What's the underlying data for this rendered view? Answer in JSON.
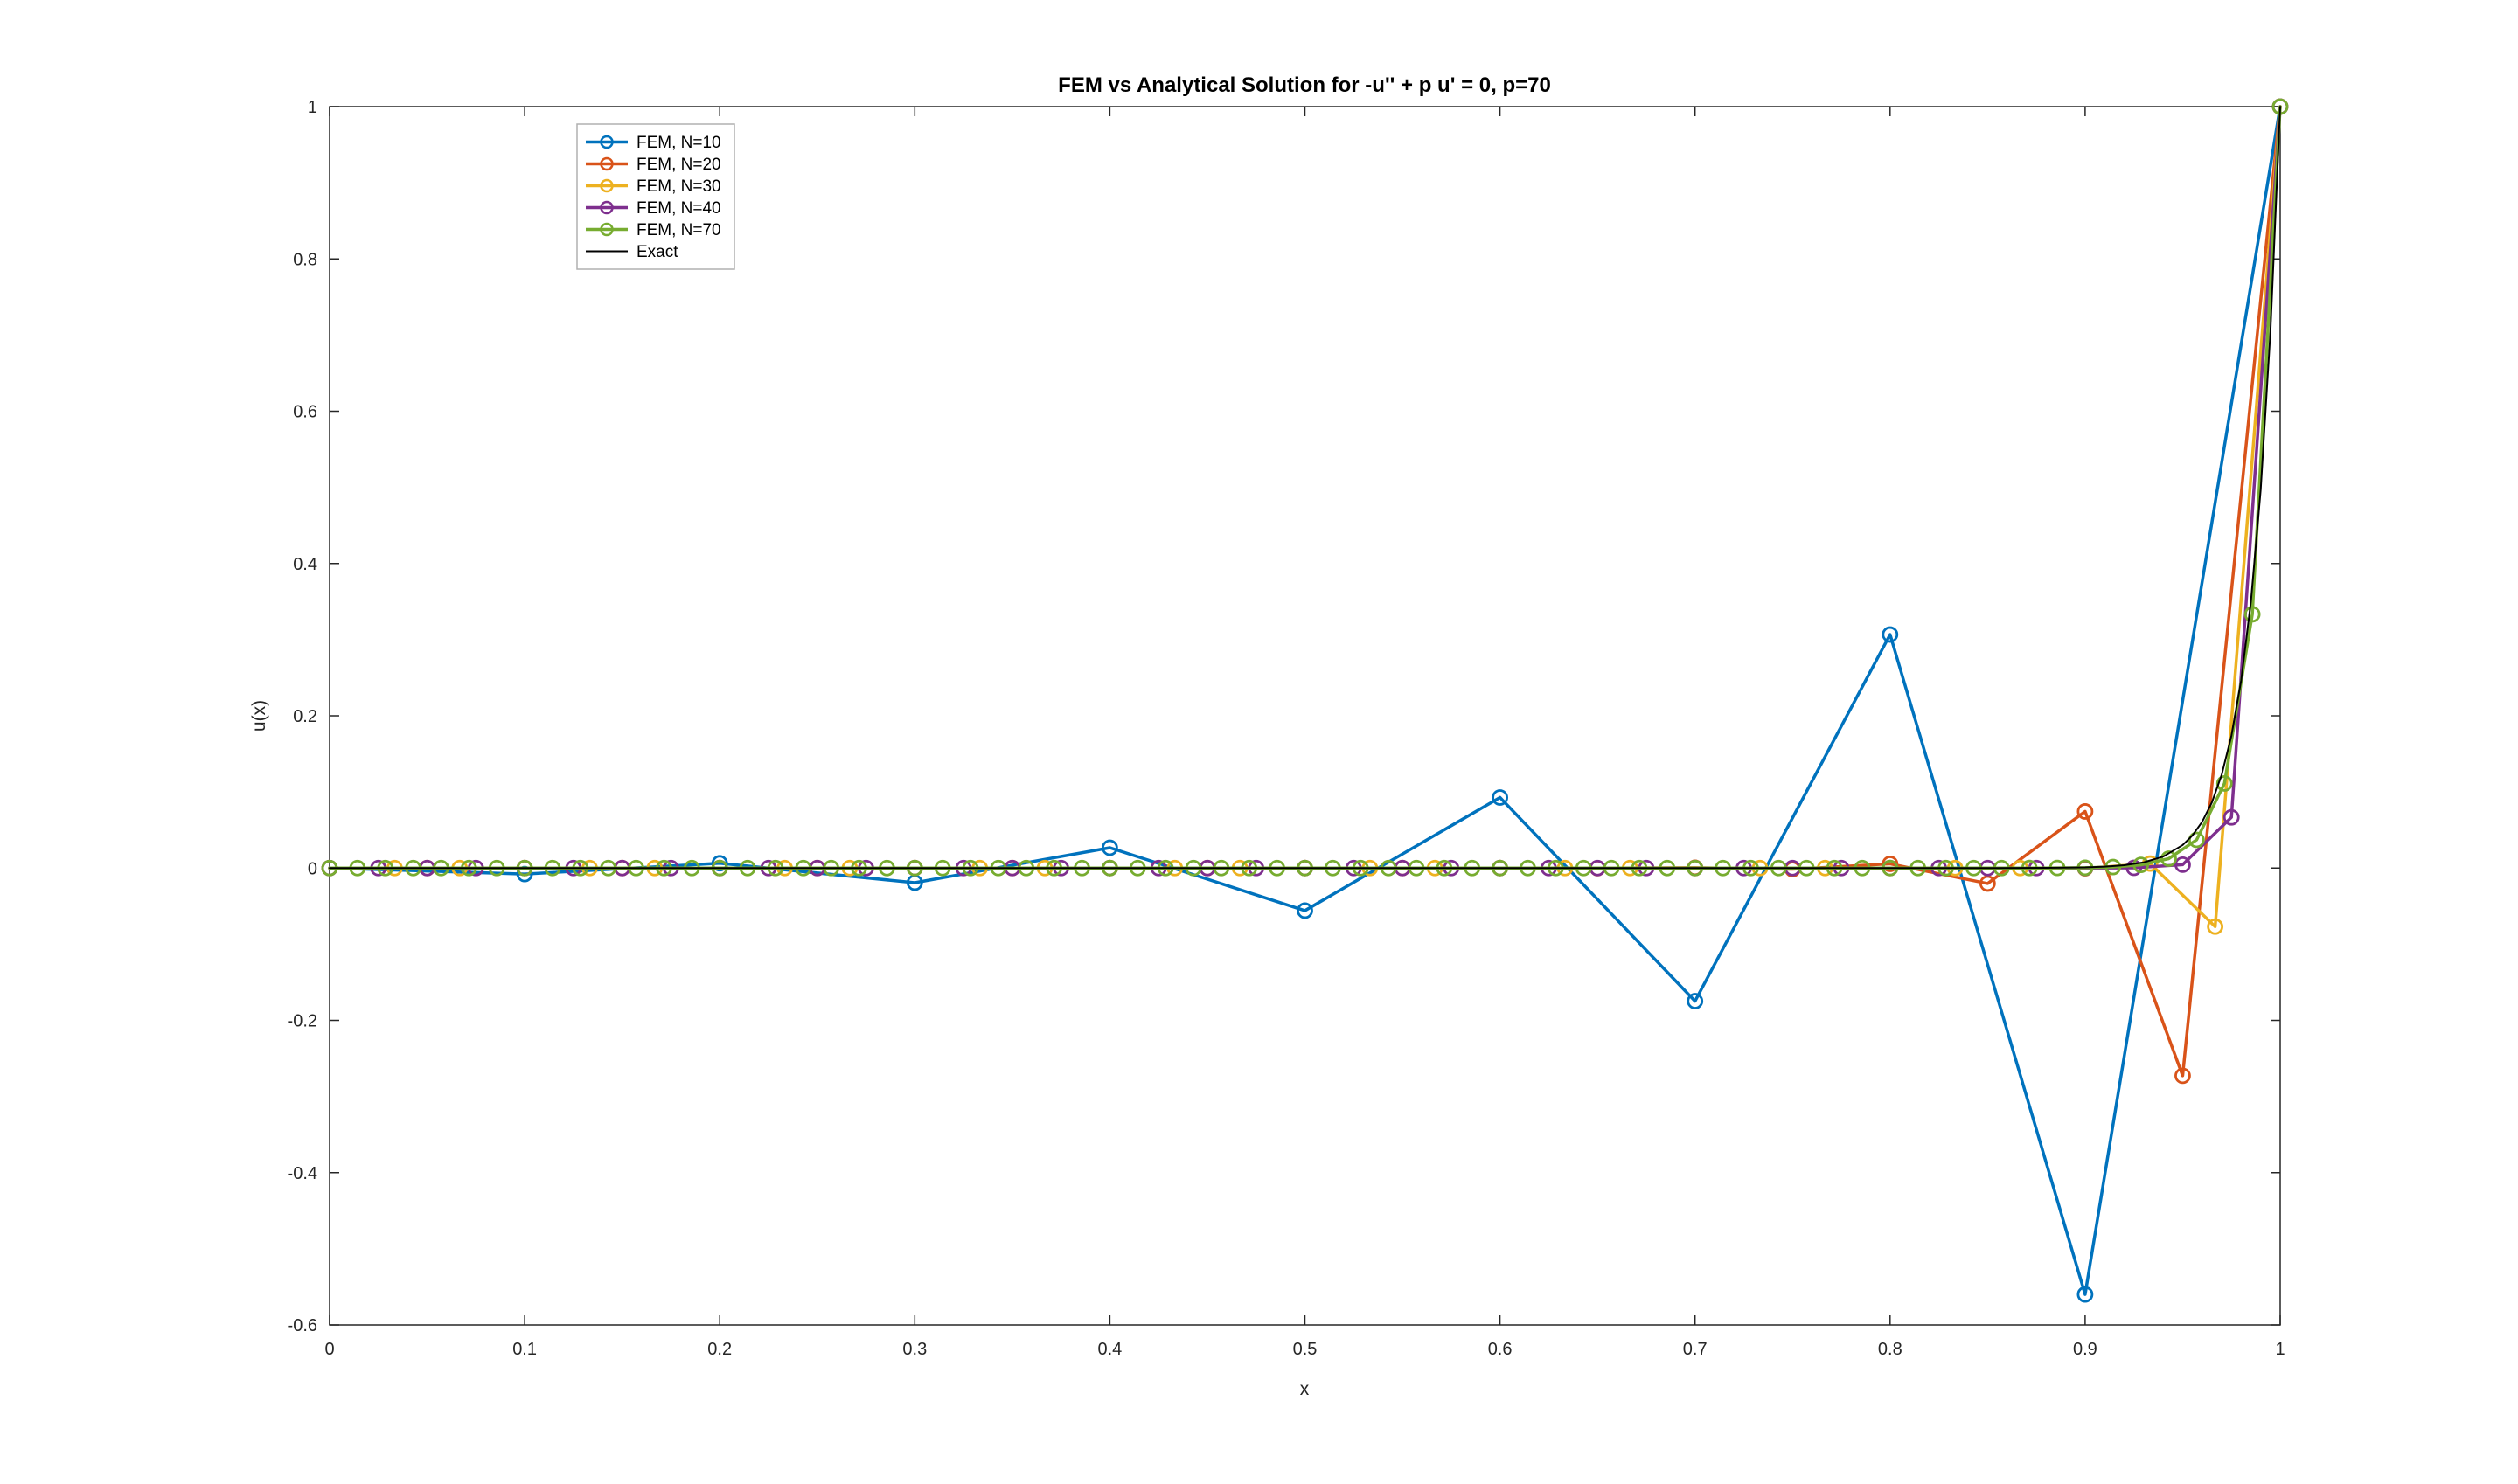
{
  "figure": {
    "background_color": "#ffffff",
    "axes_color": "#262626"
  },
  "chart_data": {
    "type": "line",
    "title": "FEM vs Analytical Solution for -u'' + p u' = 0,  p=70",
    "xlabel": "x",
    "ylabel": "u(x)",
    "xlim": [
      0,
      1
    ],
    "ylim": [
      -0.6,
      1
    ],
    "grid": false,
    "legend": {
      "location": "northwest-inside",
      "border_color": "#b0b0b0",
      "background": "#ffffff"
    },
    "xticks": [
      {
        "value": 0,
        "label": "0"
      },
      {
        "value": 0.1,
        "label": "0.1"
      },
      {
        "value": 0.2,
        "label": "0.2"
      },
      {
        "value": 0.3,
        "label": "0.3"
      },
      {
        "value": 0.4,
        "label": "0.4"
      },
      {
        "value": 0.5,
        "label": "0.5"
      },
      {
        "value": 0.6,
        "label": "0.6"
      },
      {
        "value": 0.7,
        "label": "0.7"
      },
      {
        "value": 0.8,
        "label": "0.8"
      },
      {
        "value": 0.9,
        "label": "0.9"
      },
      {
        "value": 1,
        "label": "1"
      }
    ],
    "yticks": [
      {
        "value": -0.6,
        "label": "-0.6"
      },
      {
        "value": -0.4,
        "label": "-0.4"
      },
      {
        "value": -0.2,
        "label": "-0.2"
      },
      {
        "value": 0,
        "label": "0"
      },
      {
        "value": 0.2,
        "label": "0.2"
      },
      {
        "value": 0.4,
        "label": "0.4"
      },
      {
        "value": 0.6,
        "label": "0.6"
      },
      {
        "value": 0.8,
        "label": "0.8"
      },
      {
        "value": 1,
        "label": "1"
      }
    ],
    "series": [
      {
        "id": "fem-n10",
        "name": "FEM, N=10",
        "color": "#0072BD",
        "marker": "circle",
        "line_width": 3.5,
        "x": [
          0,
          0.1,
          0.2,
          0.3,
          0.4,
          0.5,
          0.6,
          0.7,
          0.8,
          0.9,
          1
        ],
        "y": [
          0,
          -0.007864,
          0.006291,
          -0.019188,
          0.026675,
          -0.05588,
          0.092719,
          -0.174758,
          0.3067,
          -0.559924,
          1
        ]
      },
      {
        "id": "fem-n20",
        "name": "FEM, N=20",
        "color": "#D95319",
        "marker": "circle",
        "line_width": 3.5,
        "x": [
          0,
          0.05,
          0.1,
          0.15,
          0.2,
          0.25,
          0.3,
          0.35,
          0.4,
          0.45,
          0.5,
          0.55,
          0.6,
          0.65,
          0.7,
          0.75,
          0.8,
          0.85,
          0.9,
          0.95,
          1
        ],
        "y": [
          0,
          0,
          0,
          0,
          0,
          0,
          0,
          0,
          0,
          0,
          2e-06,
          -8e-06,
          3.1e-05,
          -0.000112,
          0.000412,
          -0.001509,
          0.005532,
          -0.020286,
          0.07438,
          -0.272727,
          1
        ]
      },
      {
        "id": "fem-n30",
        "name": "FEM, N=30",
        "color": "#EDB120",
        "marker": "circle",
        "line_width": 3.5,
        "x": [
          0,
          0.033333,
          0.066667,
          0.1,
          0.133333,
          0.166667,
          0.2,
          0.233333,
          0.266667,
          0.3,
          0.333333,
          0.366667,
          0.4,
          0.433333,
          0.466667,
          0.5,
          0.533333,
          0.566667,
          0.6,
          0.633333,
          0.666667,
          0.7,
          0.733333,
          0.766667,
          0.8,
          0.833333,
          0.866667,
          0.9,
          0.933333,
          0.966667,
          1
        ],
        "y": [
          0,
          0,
          0,
          0,
          0,
          0,
          0,
          0,
          0,
          0,
          0,
          0,
          0,
          0,
          0,
          0,
          0,
          0,
          0,
          0,
          0,
          0,
          0,
          0,
          0,
          -3e-06,
          3.5e-05,
          -0.000455,
          0.005917,
          -0.076923,
          1
        ]
      },
      {
        "id": "fem-n40",
        "name": "FEM, N=40",
        "color": "#7E2F8E",
        "marker": "circle",
        "line_width": 3.5,
        "x": [
          0,
          0.025,
          0.05,
          0.075,
          0.1,
          0.125,
          0.15,
          0.175,
          0.2,
          0.225,
          0.25,
          0.275,
          0.3,
          0.325,
          0.35,
          0.375,
          0.4,
          0.425,
          0.45,
          0.475,
          0.5,
          0.525,
          0.55,
          0.575,
          0.6,
          0.625,
          0.65,
          0.675,
          0.7,
          0.725,
          0.75,
          0.775,
          0.8,
          0.825,
          0.85,
          0.875,
          0.9,
          0.925,
          0.95,
          0.975,
          1
        ],
        "y": [
          0,
          0,
          0,
          0,
          0,
          0,
          0,
          0,
          0,
          0,
          0,
          0,
          0,
          0,
          0,
          0,
          0,
          0,
          0,
          0,
          0,
          0,
          0,
          0,
          0,
          0,
          0,
          0,
          0,
          0,
          0,
          0,
          0,
          0,
          0,
          1e-06,
          2e-05,
          0.000296,
          0.004444,
          0.066667,
          1
        ]
      },
      {
        "id": "fem-n70",
        "name": "FEM, N=70",
        "color": "#77AC30",
        "marker": "circle",
        "line_width": 3.5,
        "x": [
          0,
          0.014286,
          0.028571,
          0.042857,
          0.057143,
          0.071429,
          0.085714,
          0.1,
          0.114286,
          0.128571,
          0.142857,
          0.157143,
          0.171429,
          0.185714,
          0.2,
          0.214286,
          0.228571,
          0.242857,
          0.257143,
          0.271429,
          0.285714,
          0.3,
          0.314286,
          0.328571,
          0.342857,
          0.357143,
          0.371429,
          0.385714,
          0.4,
          0.414286,
          0.428571,
          0.442857,
          0.457143,
          0.471429,
          0.485714,
          0.5,
          0.514286,
          0.528571,
          0.542857,
          0.557143,
          0.571429,
          0.585714,
          0.6,
          0.614286,
          0.628571,
          0.642857,
          0.657143,
          0.671429,
          0.685714,
          0.7,
          0.714286,
          0.728571,
          0.742857,
          0.757143,
          0.771429,
          0.785714,
          0.8,
          0.814286,
          0.828571,
          0.842857,
          0.857143,
          0.871429,
          0.885714,
          0.9,
          0.914286,
          0.928571,
          0.942857,
          0.957143,
          0.971429,
          0.985714,
          1
        ],
        "y": [
          0,
          0,
          0,
          0,
          0,
          0,
          0,
          0,
          0,
          0,
          0,
          0,
          0,
          0,
          0,
          0,
          0,
          0,
          0,
          0,
          0,
          0,
          0,
          0,
          0,
          0,
          0,
          0,
          0,
          0,
          0,
          0,
          0,
          0,
          0,
          0,
          0,
          0,
          0,
          0,
          0,
          0,
          0,
          0,
          0,
          0,
          0,
          0,
          0,
          0,
          0,
          0,
          0,
          0,
          0,
          0,
          0,
          0,
          2e-06,
          6e-06,
          1.7e-05,
          5.1e-05,
          0.000152,
          0.000457,
          0.001372,
          0.004115,
          0.012346,
          0.037037,
          0.111111,
          0.333333,
          1
        ]
      },
      {
        "id": "exact",
        "name": "Exact",
        "color": "#000000",
        "marker": "none",
        "line_width": 2,
        "x": [
          0,
          0.1,
          0.2,
          0.3,
          0.4,
          0.5,
          0.6,
          0.7,
          0.8,
          0.85,
          0.88,
          0.9,
          0.91,
          0.92,
          0.93,
          0.94,
          0.95,
          0.955,
          0.96,
          0.965,
          0.97,
          0.975,
          0.98,
          0.985,
          0.99,
          0.995,
          1
        ],
        "y": [
          0,
          0,
          0,
          0,
          0,
          0,
          0,
          0,
          1e-06,
          2.8e-05,
          0.000225,
          0.000912,
          0.001836,
          0.003698,
          0.007447,
          0.014996,
          0.030197,
          0.042852,
          0.06081,
          0.086294,
          0.122456,
          0.173774,
          0.246597,
          0.349938,
          0.496585,
          0.704688,
          1
        ]
      }
    ]
  }
}
